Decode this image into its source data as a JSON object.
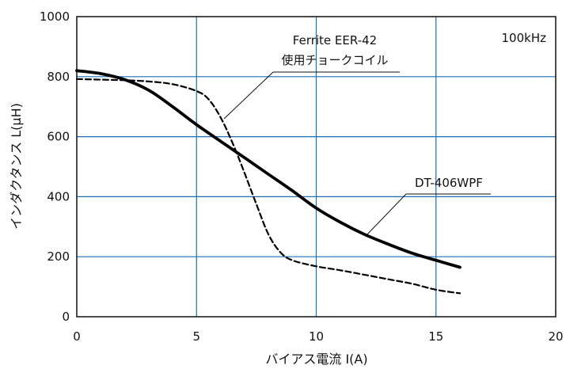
{
  "chart_data": {
    "type": "line",
    "title": "",
    "annotation": "100kHz",
    "xlabel": "バイアス電流 I(A)",
    "ylabel": "インダクタンス L(μH)",
    "xlim": [
      0,
      20
    ],
    "ylim": [
      0,
      1000
    ],
    "xticks": [
      0,
      5,
      10,
      15,
      20
    ],
    "yticks": [
      0,
      200,
      400,
      600,
      800,
      1000
    ],
    "xtick_labels": [
      "0",
      "5",
      "10",
      "15",
      "20"
    ],
    "ytick_labels": [
      "0",
      "200",
      "400",
      "600",
      "800",
      "1000"
    ],
    "grid": true,
    "colors": {
      "grid": "#1f6fb4",
      "series": "#000000",
      "frame": "#111111"
    },
    "series": [
      {
        "name": "DT-406WPF",
        "style": "solid",
        "x": [
          0,
          1,
          2,
          3,
          4,
          5,
          6,
          7,
          8,
          9,
          10,
          11,
          12,
          13,
          14,
          15,
          16
        ],
        "y": [
          820,
          810,
          790,
          755,
          700,
          640,
          585,
          530,
          475,
          420,
          362,
          315,
          275,
          242,
          212,
          188,
          165
        ]
      },
      {
        "name": "Ferrite EER-42 使用チョークコイル",
        "style": "dashed",
        "x": [
          0,
          1,
          2,
          3,
          4,
          5,
          5.5,
          6,
          6.5,
          7,
          7.5,
          8,
          8.5,
          9,
          10,
          11,
          12,
          13,
          14,
          15,
          16
        ],
        "y": [
          792,
          790,
          788,
          784,
          775,
          752,
          725,
          665,
          580,
          480,
          375,
          275,
          215,
          188,
          168,
          155,
          140,
          125,
          110,
          90,
          78
        ]
      }
    ],
    "callouts": [
      {
        "lines": [
          "Ferrite EER-42",
          "使用チョークコイル"
        ]
      },
      {
        "lines": [
          "DT-406WPF"
        ]
      }
    ]
  }
}
